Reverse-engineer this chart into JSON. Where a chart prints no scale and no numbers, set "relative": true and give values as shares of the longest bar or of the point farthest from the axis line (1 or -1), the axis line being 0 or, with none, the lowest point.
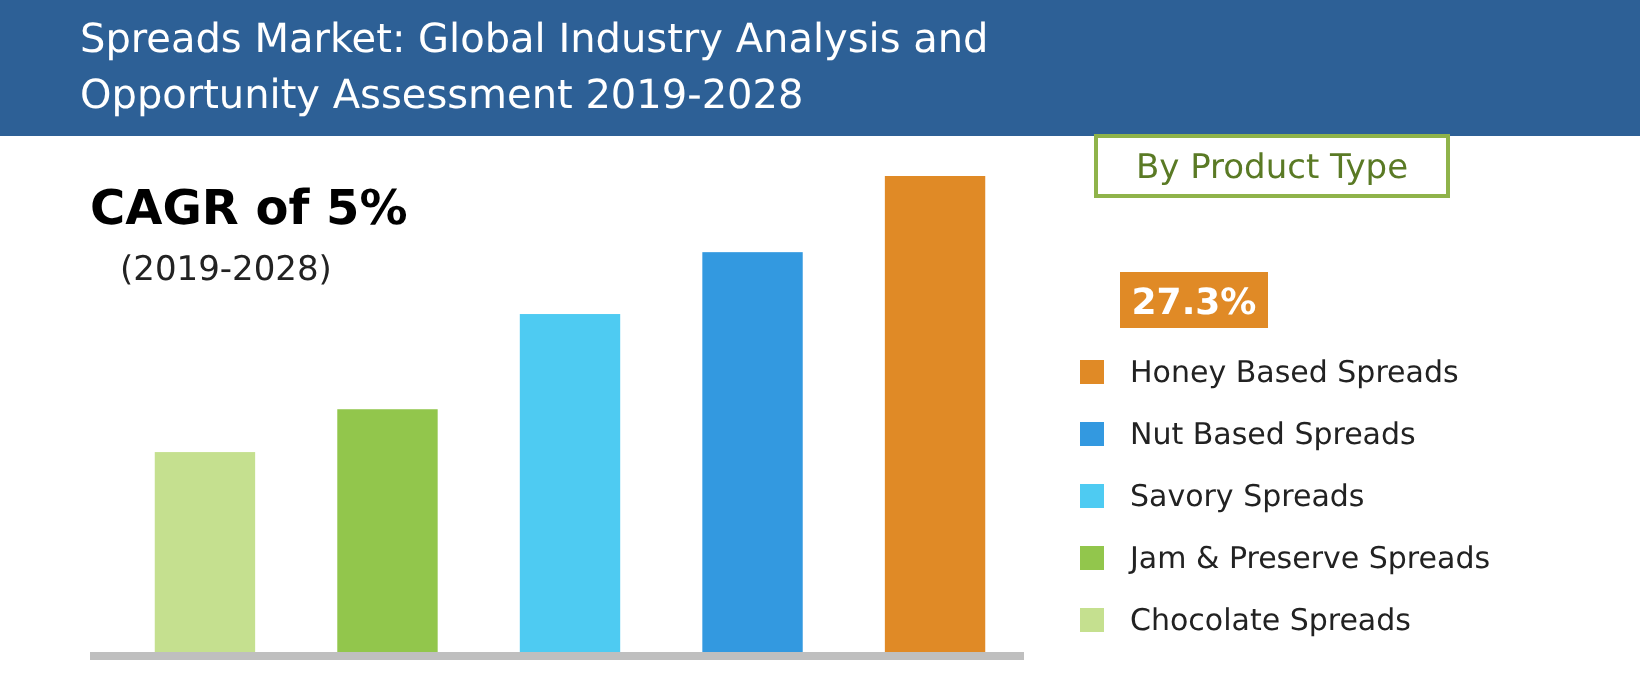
{
  "chart_data": {
    "type": "bar",
    "title": "Spreads Market: Global Industry Analysis and Opportunity Assessment 2019-2028",
    "categories": [
      null,
      null,
      null,
      null,
      null
    ],
    "stacked": true,
    "series": [
      {
        "name": "Chocolate Spreads",
        "color": "#c5e08f",
        "values": [
          0.42,
          null,
          null,
          null,
          null
        ]
      },
      {
        "name": "Jam & Preserve Spreads",
        "color": "#92c64c",
        "values": [
          null,
          0.51,
          null,
          null,
          null
        ]
      },
      {
        "name": "Savory Spreads",
        "color": "#4ecbf2",
        "values": [
          null,
          null,
          0.71,
          null,
          null
        ]
      },
      {
        "name": "Nut Based Spreads",
        "color": "#3399e0",
        "values": [
          null,
          null,
          null,
          0.84,
          null
        ]
      },
      {
        "name": "Honey Based Spreads",
        "color": "#e08a26",
        "values": [
          null,
          null,
          null,
          null,
          1
        ]
      }
    ],
    "relative": true,
    "legend": "right",
    "legend_title": "By Product Type",
    "annotations": [
      "CAGR of 5%",
      "(2019-2028)",
      "27.3%"
    ]
  }
}
